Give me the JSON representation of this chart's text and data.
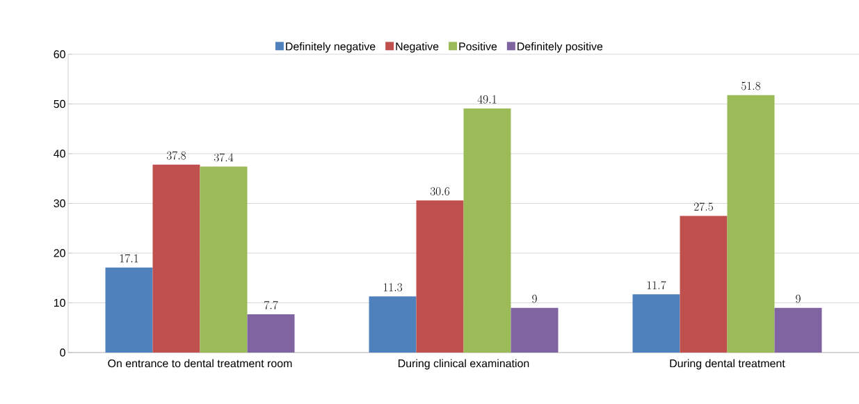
{
  "chart_data": {
    "type": "bar",
    "categories": [
      "On entrance to dental treatment room",
      "During clinical examination",
      "During dental treatment"
    ],
    "series": [
      {
        "name": "Definitely negative",
        "color": "#4f81bd",
        "values": [
          17.1,
          11.3,
          11.7
        ]
      },
      {
        "name": "Negative",
        "color": "#c0504d",
        "values": [
          37.8,
          30.6,
          27.5
        ]
      },
      {
        "name": "Positive",
        "color": "#9bbb59",
        "values": [
          37.4,
          49.1,
          51.8
        ]
      },
      {
        "name": "Definitely positive",
        "color": "#8064a2",
        "values": [
          7.7,
          9,
          9
        ]
      }
    ],
    "ylim": [
      0,
      60
    ],
    "yticks": [
      0,
      10,
      20,
      30,
      40,
      50,
      60
    ],
    "grid": "y",
    "legend": "top",
    "data_labels": true
  }
}
